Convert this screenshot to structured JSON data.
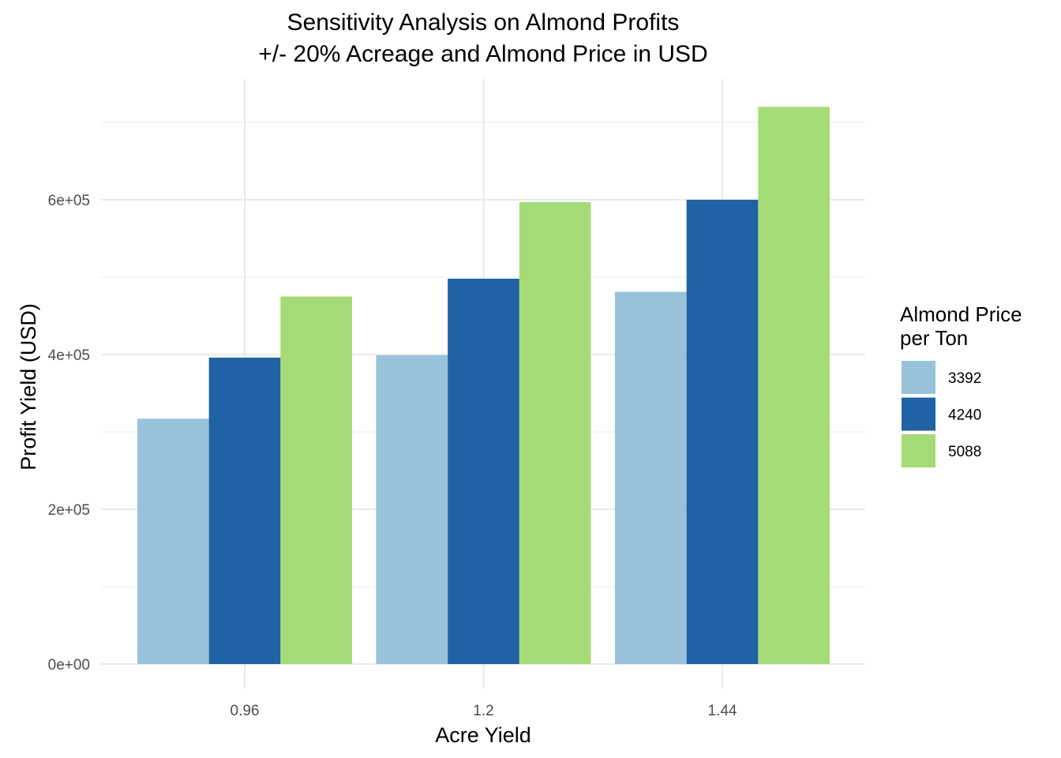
{
  "chart_data": {
    "type": "bar",
    "title": [
      "Sensitivity Analysis on Almond Profits",
      "+/- 20% Acreage and Almond Price in USD"
    ],
    "xlabel": "Acre Yield",
    "ylabel": "Profit Yield (USD)",
    "categories": [
      "0.96",
      "1.2",
      "1.44"
    ],
    "ylim": [
      0,
      730000
    ],
    "yticks": [
      {
        "value": 0,
        "label": "0e+00"
      },
      {
        "value": 200000,
        "label": "2e+05"
      },
      {
        "value": 400000,
        "label": "4e+05"
      },
      {
        "value": 600000,
        "label": "6e+05"
      }
    ],
    "yminor": [
      100000,
      300000,
      500000,
      700000
    ],
    "grid": true,
    "legend": {
      "title": [
        "Almond Price",
        "per Ton"
      ],
      "position": "right"
    },
    "series": [
      {
        "name": "3392",
        "color": "#97c2da",
        "values": [
          317000,
          399000,
          481000
        ]
      },
      {
        "name": "4240",
        "color": "#1f63a4",
        "values": [
          396000,
          498000,
          600000
        ]
      },
      {
        "name": "5088",
        "color": "#a5db76",
        "values": [
          475000,
          597000,
          720000
        ]
      }
    ]
  }
}
